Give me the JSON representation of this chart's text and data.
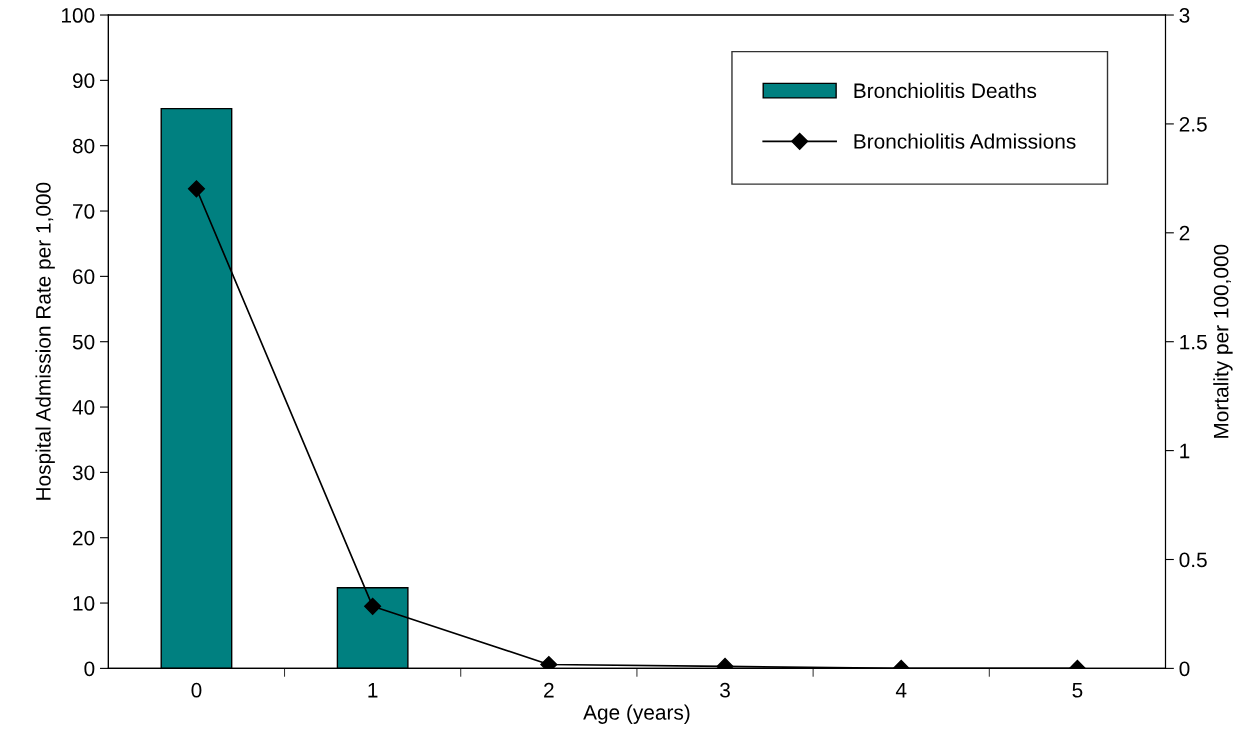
{
  "chart_data": {
    "type": "bar",
    "xlabel": "Age (years)",
    "ylabel": "Hospital Admission Rate per 1,000",
    "y2label": "Mortality per 100,000",
    "categories": [
      "0",
      "1",
      "2",
      "3",
      "4",
      "5"
    ],
    "series": [
      {
        "name": "Bronchiolitis Deaths",
        "axis": "y2",
        "color": "#008080",
        "values": [
          2.57,
          0.37,
          0,
          0,
          0,
          0
        ]
      },
      {
        "name": "Bronchiolitis Admissions",
        "type": "line",
        "axis": "y",
        "color": "#000000",
        "marker": "diamond",
        "values": [
          73.4,
          9.5,
          0.6,
          0.3,
          0,
          0
        ]
      }
    ],
    "ylim": [
      0,
      100
    ],
    "yticks": [
      0,
      10,
      20,
      30,
      40,
      50,
      60,
      70,
      80,
      90,
      100
    ],
    "y2lim": [
      0,
      3
    ],
    "y2ticks": [
      0,
      0.5,
      1,
      1.5,
      2,
      2.5,
      3
    ],
    "grid": false,
    "legend": "top right"
  }
}
